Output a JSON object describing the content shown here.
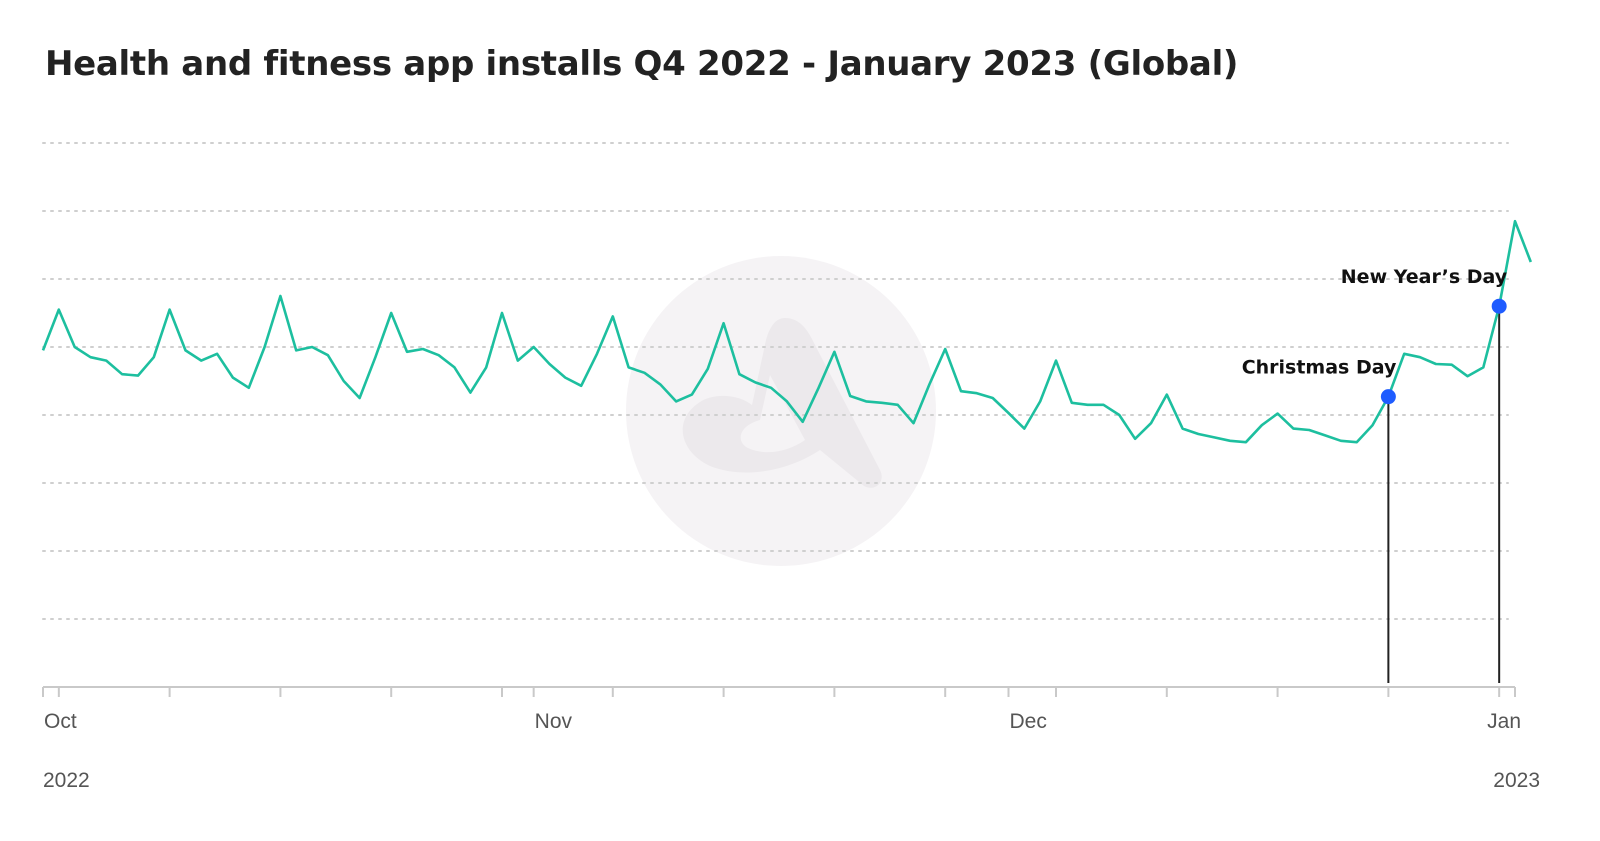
{
  "title": "Health and fitness app installs Q4 2022 - January 2023 (Global)",
  "colors": {
    "line": "#1dbf9f",
    "marker": "#1f5cff",
    "grid": "#cfcfcf",
    "axis": "#c9c9c9",
    "watermark": "#f3f1f3"
  },
  "watermark_icon": "app-logo-icon",
  "chart_data": {
    "type": "line",
    "title": "Health and fitness app installs Q4 2022 - January 2023 (Global)",
    "xlabel": "",
    "ylabel": "",
    "x_start": "2022-10-01",
    "x_end": "2023-01-02",
    "x_tick_labels": [
      {
        "date": "2022-10-01",
        "label": "Oct",
        "year": "2022"
      },
      {
        "date": "2022-11-01",
        "label": "Nov",
        "year": ""
      },
      {
        "date": "2022-12-01",
        "label": "Dec",
        "year": ""
      },
      {
        "date": "2023-01-01",
        "label": "Jan",
        "year": "2023"
      }
    ],
    "ylim": [
      0,
      8
    ],
    "gridlines": [
      1,
      2,
      3,
      4,
      5,
      6,
      7,
      8
    ],
    "grid": true,
    "series": [
      {
        "values": [
          4.95,
          5.55,
          5.0,
          4.85,
          4.8,
          4.6,
          4.58,
          4.85,
          5.55,
          4.95,
          4.8,
          4.9,
          4.55,
          4.4,
          5.0,
          5.75,
          4.95,
          5.0,
          4.88,
          4.5,
          4.25,
          4.85,
          5.5,
          4.93,
          4.97,
          4.88,
          4.7,
          4.33,
          4.7,
          5.5,
          4.8,
          5.0,
          4.75,
          4.55,
          4.43,
          4.9,
          5.45,
          4.7,
          4.62,
          4.45,
          4.2,
          4.3,
          4.68,
          5.35,
          4.6,
          4.48,
          4.4,
          4.2,
          3.9,
          4.4,
          4.93,
          4.28,
          4.2,
          4.18,
          4.15,
          3.88,
          4.45,
          4.97,
          4.35,
          4.32,
          4.25,
          4.03,
          3.8,
          4.2,
          4.8,
          4.18,
          4.15,
          4.15,
          4.0,
          3.65,
          3.88,
          4.3,
          3.8,
          3.72,
          3.67,
          3.62,
          3.6,
          3.85,
          4.02,
          3.8,
          3.78,
          3.7,
          3.62,
          3.6,
          3.85,
          4.27,
          4.9,
          4.85,
          4.75,
          4.74,
          4.57,
          4.7,
          5.6,
          6.85,
          6.25
        ]
      }
    ],
    "annotations": [
      {
        "label": "Christmas Day",
        "index": 85
      },
      {
        "label": "New Year’s Day",
        "index": 92
      }
    ]
  }
}
